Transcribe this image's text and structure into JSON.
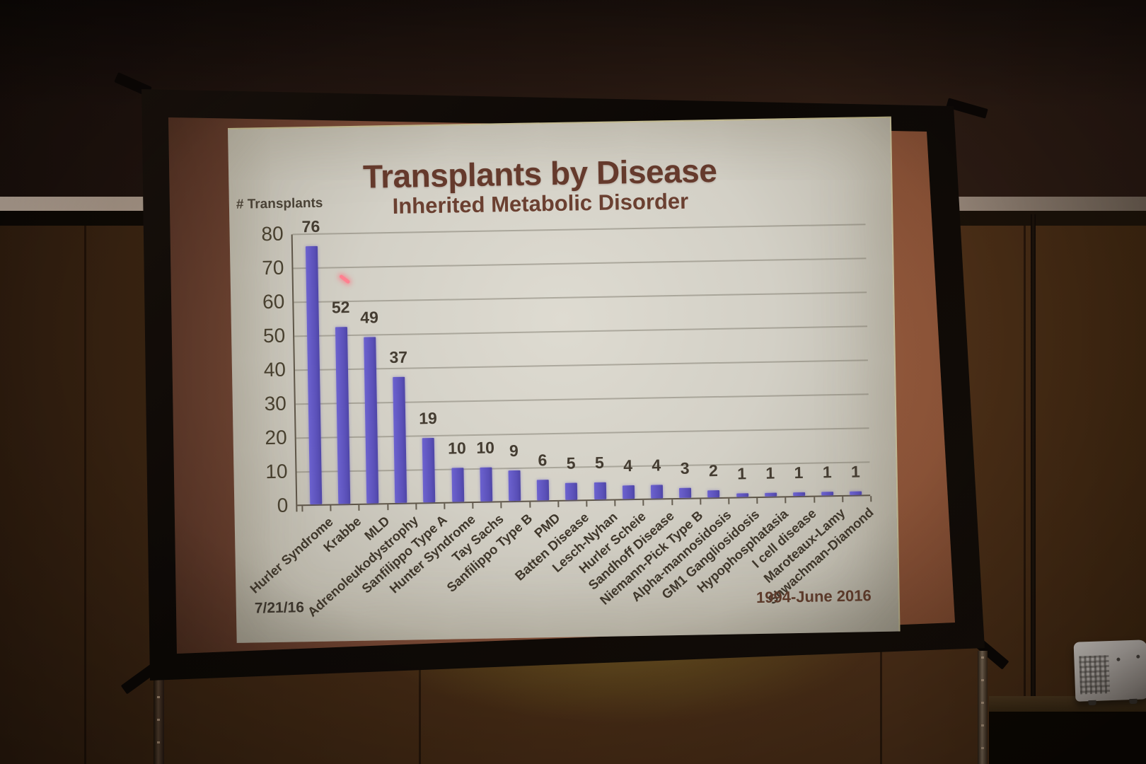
{
  "scene": {
    "setting": "conference-room projection screen photo",
    "colors": {
      "wall": "#3a2411",
      "trim_stripe": "#9c8c7e",
      "screen_frame": "#0c0805",
      "screen_surround": "#8a563f",
      "slide_background": "#d3d0c6",
      "bar": "#5f55bd",
      "heading_text": "#653a2c",
      "axis_text": "#48402f",
      "laser_dot": "#ff8090"
    }
  },
  "slide": {
    "title": "Transplants by Disease",
    "subtitle": "Inherited Metabolic Disorder",
    "y_axis_label": "# Transplants",
    "date_stamp": "7/21/16",
    "period_label": "1994-June 2016"
  },
  "chart_data": {
    "type": "bar",
    "title": "Transplants by Disease",
    "subtitle": "Inherited Metabolic Disorder",
    "xlabel": "",
    "ylabel": "# Transplants",
    "ylim": [
      0,
      80
    ],
    "yticks": [
      0,
      10,
      20,
      30,
      40,
      50,
      60,
      70,
      80
    ],
    "grid": true,
    "legend": false,
    "bar_value_labels_shown": true,
    "categories": [
      "Hurler Syndrome",
      "Krabbe",
      "MLD",
      "Adrenoleukodystrophy",
      "Sanfilippo Type A",
      "Hunter Syndrome",
      "Tay Sachs",
      "Sanfilippo Type B",
      "PMD",
      "Batten Disease",
      "Lesch-Nyhan",
      "Hurler Scheie",
      "Sandhoff Disease",
      "Niemann-Pick Type B",
      "Alpha-mannosidosis",
      "GM1 Gangliosidosis",
      "Hypophosphatasia",
      "I cell disease",
      "Maroteaux-Lamy",
      "Shwachman-Diamond"
    ],
    "values": [
      76,
      52,
      49,
      37,
      19,
      10,
      10,
      9,
      6,
      5,
      5,
      4,
      4,
      3,
      2,
      1,
      1,
      1,
      1,
      1
    ]
  }
}
